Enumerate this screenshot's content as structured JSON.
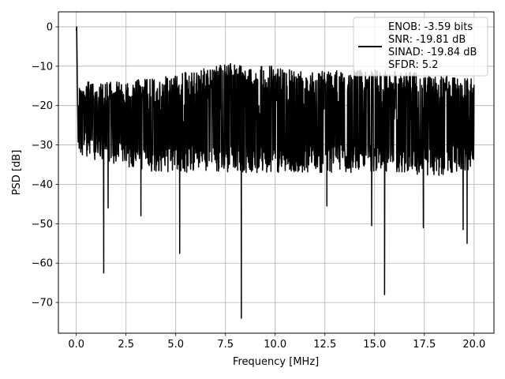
{
  "chart_data": {
    "type": "line",
    "xlabel": "Frequency [MHz]",
    "ylabel": "PSD [dB]",
    "xlim": [
      -0.9,
      21.0
    ],
    "ylim": [
      -77.8,
      3.8
    ],
    "grid": true,
    "legend_placement": "top-right",
    "xticks": [
      0.0,
      2.5,
      5.0,
      7.5,
      10.0,
      12.5,
      15.0,
      17.5,
      20.0
    ],
    "xtick_labels": [
      "0.0",
      "2.5",
      "5.0",
      "7.5",
      "10.0",
      "12.5",
      "15.0",
      "17.5",
      "20.0"
    ],
    "yticks": [
      0,
      -10,
      -20,
      -30,
      -40,
      -50,
      -60,
      -70
    ],
    "ytick_labels": [
      "0",
      "−10",
      "−20",
      "−30",
      "−40",
      "−50",
      "−60",
      "−70"
    ],
    "series": [
      {
        "name": "ENOB: -3.59 bits\nSNR: -19.81 dB\nSINAD: -19.84 dB\nSFDR: 5.2",
        "color": "#000000",
        "x_range": [
          0,
          20
        ],
        "noise_band_envelope": {
          "x": [
            0,
            0.2,
            1,
            2,
            4,
            6,
            8,
            10,
            12,
            14,
            16,
            18,
            20
          ],
          "upper": [
            -16,
            -14,
            -14,
            -14,
            -13,
            -11,
            -9,
            -10,
            -11,
            -11,
            -11,
            -12,
            -13
          ],
          "lower": [
            -30,
            -33,
            -34,
            -35,
            -37,
            -37,
            -37,
            -37,
            -37,
            -37,
            -37,
            -38,
            -36
          ]
        },
        "dips": [
          {
            "x": 1.38,
            "y": -62.5
          },
          {
            "x": 1.6,
            "y": -46
          },
          {
            "x": 3.25,
            "y": -48
          },
          {
            "x": 5.2,
            "y": -57.5
          },
          {
            "x": 8.3,
            "y": -74
          },
          {
            "x": 12.6,
            "y": -45.5
          },
          {
            "x": 14.85,
            "y": -50.5
          },
          {
            "x": 15.5,
            "y": -68
          },
          {
            "x": 17.45,
            "y": -51
          },
          {
            "x": 19.45,
            "y": -51.5
          },
          {
            "x": 19.65,
            "y": -55
          }
        ],
        "start_points": [
          {
            "x": 0.0,
            "y": -1
          },
          {
            "x": 0.02,
            "y": 0
          },
          {
            "x": 0.05,
            "y": -13
          },
          {
            "x": 0.08,
            "y": -24
          }
        ]
      }
    ]
  }
}
